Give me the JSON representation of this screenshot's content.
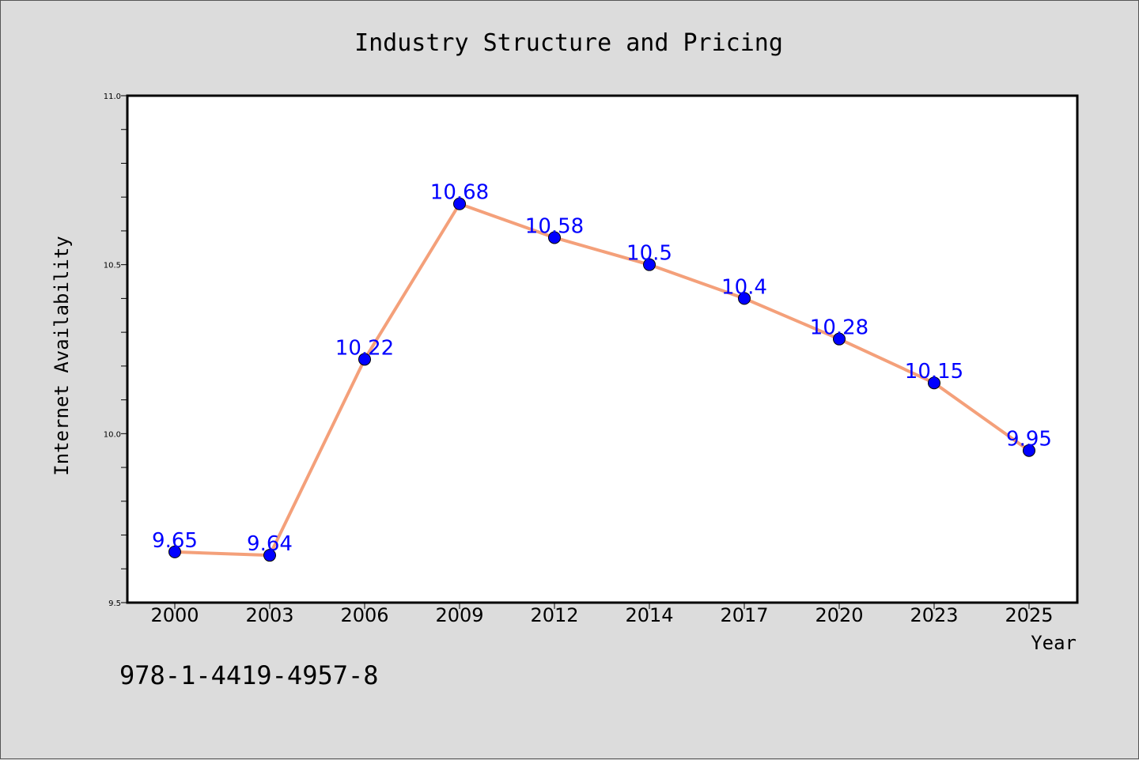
{
  "colors": {
    "background": "#dcdcdc",
    "plot_background": "#ffffff",
    "line": "#f4a07a",
    "marker": "#0000ff",
    "data_label": "#0000ff"
  },
  "isbn": "978-1-4419-4957-8",
  "chart_data": {
    "type": "line",
    "title": "Industry Structure and Pricing",
    "xlabel": "Year",
    "ylabel": "Internet Availability",
    "categories": [
      "2000",
      "2003",
      "2006",
      "2009",
      "2012",
      "2014",
      "2017",
      "2020",
      "2023",
      "2025"
    ],
    "series": [
      {
        "values": [
          9.65,
          9.64,
          10.22,
          10.68,
          10.58,
          10.5,
          10.4,
          10.28,
          10.15,
          9.95
        ],
        "data_labels": [
          "9.65",
          "9.64",
          "10.22",
          "10.68",
          "10.58",
          "10.5",
          "10.4",
          "10.28",
          "10.15",
          "9.95"
        ]
      }
    ],
    "ylim": [
      9.5,
      11.0
    ],
    "y_ticks": [
      {
        "value": 9.5,
        "label": "9.5"
      },
      {
        "value": 10.0,
        "label": "10.0"
      },
      {
        "value": 10.5,
        "label": "10.5"
      },
      {
        "value": 11.0,
        "label": "11.0"
      }
    ],
    "y_minor_step": 0.1,
    "grid": false,
    "legend": "none"
  }
}
